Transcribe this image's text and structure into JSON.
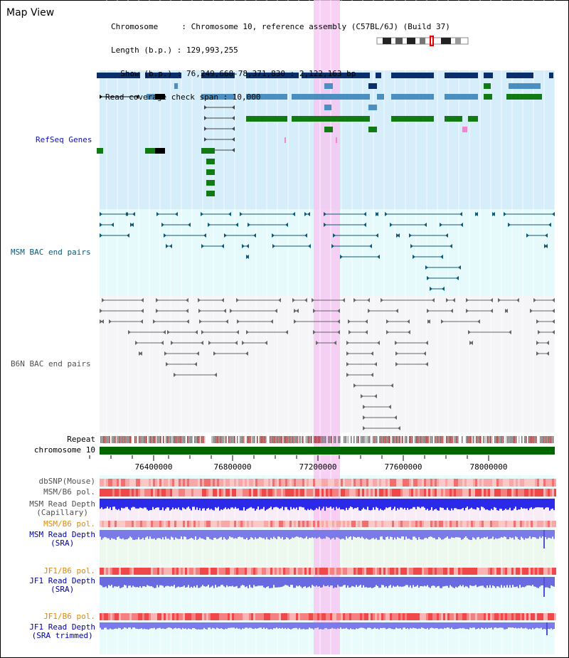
{
  "panel_title": "Map View",
  "info": {
    "chromosome_line": "Chromosome     : Chromosome 10, reference assembly (C57BL/6J) (Build 37)",
    "length_line": "Length (b.p.) : 129,993,255",
    "show_line": "  Show (b.p.) : 76,249,668-78,371,830 : 2,122,163 bp",
    "coverage_line": "Read coverage check span : 10,000"
  },
  "tracks": {
    "refseq": "RefSeq Genes",
    "msm_bac": "MSM BAC end pairs",
    "b6n_bac": "B6N BAC end pairs",
    "repeat": "Repeat",
    "chromosome": "chromosome 10",
    "dbsnp": "dbSNP(Mouse)",
    "msm_b6_pol_1": "MSM/B6 pol.",
    "msm_read_depth_cap_1": "MSM Read Depth",
    "msm_read_depth_cap_2": "(Capillary)",
    "msm_b6_pol_2": "MSM/B6 pol.",
    "msm_read_depth_sra_1": "MSM Read Depth",
    "msm_read_depth_sra_2": "(SRA)",
    "jf1_b6_pol_1": "JF1/B6 pol.",
    "jf1_read_depth_sra_1": "JF1 Read Depth",
    "jf1_read_depth_sra_2": "(SRA)",
    "jf1_b6_pol_2": "JF1/B6 pol.",
    "jf1_read_depth_trim_1": "JF1 Read Depth",
    "jf1_read_depth_trim_2": "(SRA trimmed)"
  },
  "axis": {
    "ticks": [
      "76400000",
      "76800000",
      "77200000",
      "77600000",
      "78000000"
    ]
  },
  "colors": {
    "refseq_bg": "#d6eefa",
    "msm_bac_bg": "#e6f9fb",
    "b6n_bac_bg": "#f5f5f7",
    "highlight": "#f6c6f3",
    "chromosome_bar": "#006600",
    "read_depth": "#2a2ae8",
    "msm_sra": "#7a7ae8",
    "jf1_sra": "#6a6ae0"
  }
}
